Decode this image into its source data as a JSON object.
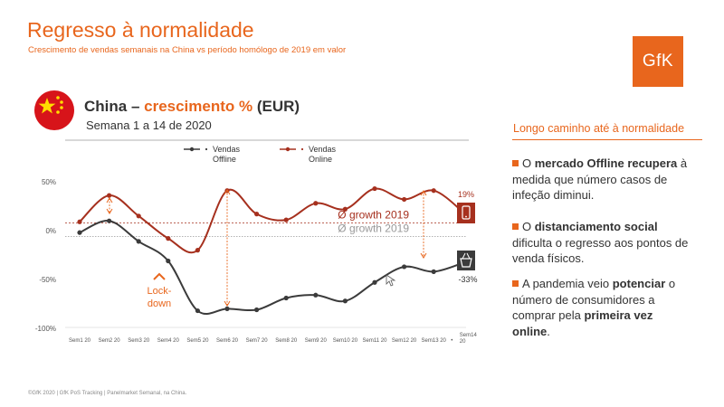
{
  "slide": {
    "title": "Regresso à normalidade",
    "subtitle": "Crescimento de vendas semanais na China vs período homólogo de 2019 em valor",
    "logo_text": "GfK",
    "footer": "©GfK 2020 | GfK PoS Tracking | Panelmarket Semanal, na China."
  },
  "chart_header": {
    "title_pre": "China – ",
    "title_accent": "crescimento %",
    "title_post": " (EUR)",
    "week_range": "Semana 1 a 14 de 2020"
  },
  "chart_data": {
    "type": "line",
    "categories": [
      "Sem1 20",
      "Sem2 20",
      "Sem3 20",
      "Sem4 20",
      "Sem5 20",
      "Sem6 20",
      "Sem7 20",
      "Sem8 20",
      "Sem9 20",
      "Sem10 20",
      "Sem11 20",
      "Sem12 20",
      "Sem13 20",
      "Sem14 20"
    ],
    "category_suffix_13": "•",
    "series": [
      {
        "name": "Vendas Offline",
        "legend_lines": [
          "Vendas",
          "Offline"
        ],
        "color": "#3b3b3b",
        "values": [
          -2,
          10,
          -11,
          -31,
          -82,
          -80,
          -81,
          -69,
          -66,
          -72,
          -53,
          -37,
          -42,
          -33
        ]
      },
      {
        "name": "Vendas Online",
        "legend_lines": [
          "Vendas",
          "Online"
        ],
        "color": "#a6301e",
        "values": [
          9,
          36,
          15,
          -8,
          -20,
          41,
          17,
          11,
          28,
          22,
          43,
          32,
          41,
          19
        ]
      }
    ],
    "ylim": [
      -100,
      50
    ],
    "yticks": [
      50,
      0,
      -50,
      -100
    ],
    "ytick_labels": [
      "50%",
      "0%",
      "-50%",
      "-100%"
    ],
    "reference_lines": [
      {
        "label": "Ø growth 2019",
        "value": 8,
        "color": "#a6301e"
      },
      {
        "label": "Ø growth 2019",
        "value": -6,
        "color": "#999999"
      }
    ],
    "end_labels": {
      "online": "19%",
      "offline": "-33%"
    },
    "annotations": {
      "lockdown_lines": [
        "Lock-",
        "down"
      ]
    }
  },
  "side_panel": {
    "heading": "Longo caminho até à normalidade",
    "points": [
      {
        "t1": "O ",
        "b1": "mercado Offline recupera",
        "t2": " à medida que número casos de infeção diminui.",
        "b2": "",
        "t3": ""
      },
      {
        "t1": "O ",
        "b1": "distanciamento social",
        "t2": " dificulta o regresso aos pontos de venda físicos.",
        "b2": "",
        "t3": ""
      },
      {
        "t1": "A pandemia veio ",
        "b1": "potenciar",
        "t2": " o número de consumidores a comprar pela ",
        "b2": "primeira vez online",
        "t3": "."
      }
    ]
  },
  "colors": {
    "accent": "#e8661d",
    "online": "#a6301e",
    "offline": "#3b3b3b"
  },
  "icons": [
    "china-flag-icon",
    "mobile-phone-icon",
    "shopping-basket-icon",
    "up-arrow-icon"
  ]
}
